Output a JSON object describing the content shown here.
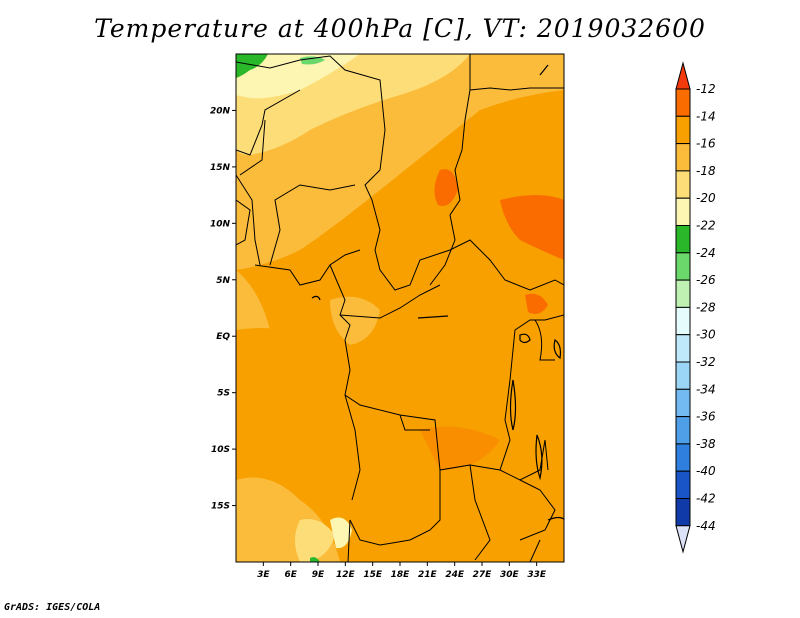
{
  "title": "Temperature at 400hPa [C], VT: 2019032600",
  "credit": "GrADS: IGES/COLA",
  "map": {
    "projection": "lat-lon",
    "lon_range": [
      0,
      36
    ],
    "lat_range": [
      -20,
      25
    ],
    "lat_ticks": [
      "20N",
      "15N",
      "10N",
      "5N",
      "EQ",
      "5S",
      "10S",
      "15S"
    ],
    "lon_ticks": [
      "3E",
      "6E",
      "9E",
      "12E",
      "15E",
      "18E",
      "21E",
      "24E",
      "27E",
      "30E",
      "33E"
    ],
    "field": "Temperature at 400hPa",
    "units": "C"
  },
  "colorbar": {
    "labels": [
      "-12",
      "-14",
      "-16",
      "-18",
      "-20",
      "-22",
      "-24",
      "-26",
      "-28",
      "-30",
      "-32",
      "-34",
      "-36",
      "-38",
      "-40",
      "-42",
      "-44"
    ],
    "colors": [
      "#f23a0c",
      "#fa6c00",
      "#f7a000",
      "#fbbc3c",
      "#fcdd78",
      "#fdf6b2",
      "#2ab82a",
      "#6ad86a",
      "#bff2b2",
      "#e6fbfb",
      "#bfe9fb",
      "#9bd6f7",
      "#73baf2",
      "#4f9ee8",
      "#2f7fde",
      "#1a55c8",
      "#0f3aa8",
      "#0a1a78",
      "#dce2f7"
    ]
  }
}
